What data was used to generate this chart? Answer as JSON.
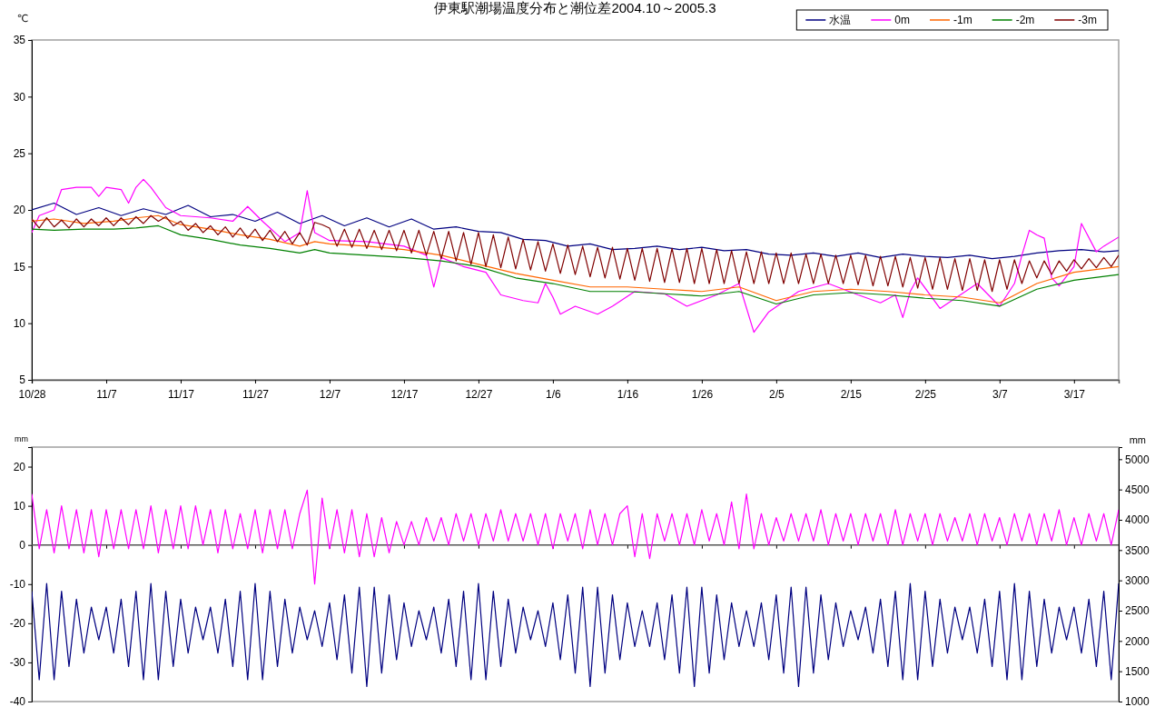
{
  "chart_data": [
    {
      "type": "line",
      "title": "伊東駅潮場温度分布と潮位差2004.10～2005.3",
      "ylabel": "℃",
      "legend": "top right",
      "x": [
        "2004-10-28",
        "2004-10-29",
        "2004-10-30",
        "2004-10-31",
        "2004-11-01",
        "2004-11-02",
        "2004-11-03",
        "2004-11-04",
        "2004-11-05",
        "2004-11-06",
        "2004-11-07",
        "2004-11-08",
        "2004-11-09",
        "2004-11-10",
        "2004-11-11",
        "2004-11-12",
        "2004-11-13",
        "2004-11-14",
        "2004-11-15",
        "2004-11-16",
        "2004-11-17",
        "2004-11-18",
        "2004-11-19",
        "2004-11-20",
        "2004-11-21",
        "2004-11-22",
        "2004-11-23",
        "2004-11-24",
        "2004-11-25",
        "2004-11-26",
        "2004-11-27",
        "2004-11-28",
        "2004-11-29",
        "2004-11-30",
        "2004-12-01",
        "2004-12-02",
        "2004-12-03",
        "2004-12-04",
        "2004-12-05",
        "2004-12-06",
        "2004-12-07",
        "2004-12-08",
        "2004-12-09",
        "2004-12-10",
        "2004-12-11",
        "2004-12-12",
        "2004-12-13",
        "2004-12-14",
        "2004-12-15",
        "2004-12-16",
        "2004-12-17",
        "2004-12-18",
        "2004-12-19",
        "2004-12-20",
        "2004-12-21",
        "2004-12-22",
        "2004-12-23",
        "2004-12-24",
        "2004-12-25",
        "2004-12-26",
        "2004-12-27",
        "2004-12-28",
        "2004-12-29",
        "2004-12-30",
        "2004-12-31",
        "2005-01-01",
        "2005-01-02",
        "2005-01-03",
        "2005-01-04",
        "2005-01-05",
        "2005-01-06",
        "2005-01-07",
        "2005-01-08",
        "2005-01-09",
        "2005-01-10",
        "2005-01-11",
        "2005-01-12",
        "2005-01-13",
        "2005-01-14",
        "2005-01-15",
        "2005-01-16",
        "2005-01-17",
        "2005-01-18",
        "2005-01-19",
        "2005-01-20",
        "2005-01-21",
        "2005-01-22",
        "2005-01-23",
        "2005-01-24",
        "2005-01-25",
        "2005-01-26",
        "2005-01-27",
        "2005-01-28",
        "2005-01-29",
        "2005-01-30",
        "2005-01-31",
        "2005-02-01",
        "2005-02-02",
        "2005-02-03",
        "2005-02-04",
        "2005-02-05",
        "2005-02-06",
        "2005-02-07",
        "2005-02-08",
        "2005-02-09",
        "2005-02-10",
        "2005-02-11",
        "2005-02-12",
        "2005-02-13",
        "2005-02-14",
        "2005-02-15",
        "2005-02-16",
        "2005-02-17",
        "2005-02-18",
        "2005-02-19",
        "2005-02-20",
        "2005-02-21",
        "2005-02-22",
        "2005-02-23",
        "2005-02-24",
        "2005-02-25",
        "2005-02-26",
        "2005-02-27",
        "2005-02-28",
        "2005-03-01",
        "2005-03-02",
        "2005-03-03",
        "2005-03-04",
        "2005-03-05",
        "2005-03-06",
        "2005-03-07",
        "2005-03-08",
        "2005-03-09",
        "2005-03-10",
        "2005-03-11",
        "2005-03-12",
        "2005-03-13",
        "2005-03-14",
        "2005-03-15",
        "2005-03-16",
        "2005-03-17",
        "2005-03-18",
        "2005-03-19",
        "2005-03-20",
        "2005-03-21",
        "2005-03-22",
        "2005-03-23"
      ],
      "xlim": [
        "2004-10-28",
        "2005-03-23"
      ],
      "xticks": [
        {
          "value": "2004-10-28",
          "label": "10/28"
        },
        {
          "value": "2004-11-07",
          "label": "11/7"
        },
        {
          "value": "2004-11-17",
          "label": "11/17"
        },
        {
          "value": "2004-11-27",
          "label": "11/27"
        },
        {
          "value": "2004-12-07",
          "label": "12/7"
        },
        {
          "value": "2004-12-17",
          "label": "12/17"
        },
        {
          "value": "2004-12-27",
          "label": "12/27"
        },
        {
          "value": "2005-01-06",
          "label": "1/6"
        },
        {
          "value": "2005-01-16",
          "label": "1/16"
        },
        {
          "value": "2005-01-26",
          "label": "1/26"
        },
        {
          "value": "2005-02-05",
          "label": "2/5"
        },
        {
          "value": "2005-02-15",
          "label": "2/15"
        },
        {
          "value": "2005-02-25",
          "label": "2/25"
        },
        {
          "value": "2005-03-07",
          "label": "3/7"
        },
        {
          "value": "2005-03-17",
          "label": "3/17"
        }
      ],
      "ylim": [
        5,
        35
      ],
      "yticks": [
        5,
        10,
        15,
        20,
        25,
        30,
        35
      ],
      "series": [
        {
          "name": "水温",
          "color": "#000080",
          "x": [
            "2004-10-28",
            "2004-10-31",
            "2004-11-03",
            "2004-11-06",
            "2004-11-09",
            "2004-11-12",
            "2004-11-15",
            "2004-11-18",
            "2004-11-21",
            "2004-11-24",
            "2004-11-27",
            "2004-11-30",
            "2004-12-03",
            "2004-12-06",
            "2004-12-09",
            "2004-12-12",
            "2004-12-15",
            "2004-12-18",
            "2004-12-21",
            "2004-12-24",
            "2004-12-27",
            "2004-12-30",
            "2005-01-02",
            "2005-01-05",
            "2005-01-08",
            "2005-01-11",
            "2005-01-14",
            "2005-01-17",
            "2005-01-20",
            "2005-01-23",
            "2005-01-26",
            "2005-01-29",
            "2005-02-01",
            "2005-02-04",
            "2005-02-07",
            "2005-02-10",
            "2005-02-13",
            "2005-02-16",
            "2005-02-19",
            "2005-02-22",
            "2005-02-25",
            "2005-02-28",
            "2005-03-03",
            "2005-03-06",
            "2005-03-09",
            "2005-03-12",
            "2005-03-15",
            "2005-03-18",
            "2005-03-21",
            "2005-03-23"
          ],
          "values": [
            20.0,
            20.6,
            19.6,
            20.2,
            19.5,
            20.1,
            19.6,
            20.4,
            19.4,
            19.6,
            19.0,
            19.8,
            18.8,
            19.5,
            18.6,
            19.3,
            18.5,
            19.2,
            18.3,
            18.5,
            18.1,
            18.0,
            17.4,
            17.3,
            16.8,
            17.0,
            16.5,
            16.6,
            16.8,
            16.5,
            16.7,
            16.4,
            16.5,
            16.1,
            16.0,
            16.2,
            15.9,
            16.2,
            15.8,
            16.1,
            15.9,
            15.8,
            16.0,
            15.7,
            15.9,
            16.2,
            16.4,
            16.5,
            16.3,
            16.4
          ]
        },
        {
          "name": "0m",
          "color": "#ff00ff",
          "x": [
            "2004-10-28",
            "2004-10-29",
            "2004-10-31",
            "2004-11-01",
            "2004-11-03",
            "2004-11-05",
            "2004-11-06",
            "2004-11-07",
            "2004-11-09",
            "2004-11-10",
            "2004-11-11",
            "2004-11-12",
            "2004-11-13",
            "2004-11-15",
            "2004-11-17",
            "2004-11-21",
            "2004-11-24",
            "2004-11-26",
            "2004-11-28",
            "2004-12-01",
            "2004-12-03",
            "2004-12-04",
            "2004-12-05",
            "2004-12-07",
            "2004-12-12",
            "2004-12-17",
            "2004-12-20",
            "2004-12-21",
            "2004-12-22",
            "2004-12-25",
            "2004-12-28",
            "2004-12-30",
            "2005-01-02",
            "2005-01-04",
            "2005-01-05",
            "2005-01-06",
            "2005-01-07",
            "2005-01-09",
            "2005-01-12",
            "2005-01-14",
            "2005-01-17",
            "2005-01-21",
            "2005-01-24",
            "2005-01-28",
            "2005-01-31",
            "2005-02-02",
            "2005-02-04",
            "2005-02-08",
            "2005-02-12",
            "2005-02-16",
            "2005-02-19",
            "2005-02-21",
            "2005-02-22",
            "2005-02-23",
            "2005-02-24",
            "2005-02-27",
            "2005-03-04",
            "2005-03-07",
            "2005-03-09",
            "2005-03-10",
            "2005-03-11",
            "2005-03-12",
            "2005-03-13",
            "2005-03-14",
            "2005-03-15",
            "2005-03-17",
            "2005-03-18",
            "2005-03-20",
            "2005-03-21",
            "2005-03-23"
          ],
          "values": [
            18.0,
            19.5,
            20.0,
            21.8,
            22.0,
            22.0,
            21.2,
            22.0,
            21.8,
            20.6,
            22.0,
            22.7,
            22.0,
            20.2,
            19.5,
            19.3,
            19.0,
            20.3,
            19.0,
            17.2,
            18.0,
            21.7,
            18.0,
            17.3,
            17.2,
            16.8,
            16.0,
            13.2,
            15.8,
            15.0,
            14.5,
            12.5,
            12.0,
            11.8,
            13.5,
            12.3,
            10.8,
            11.5,
            10.8,
            11.5,
            12.8,
            12.6,
            11.5,
            12.5,
            13.5,
            9.2,
            11.0,
            12.8,
            13.5,
            12.5,
            11.8,
            12.5,
            10.5,
            12.8,
            14.0,
            11.3,
            13.5,
            11.5,
            13.5,
            16.0,
            18.2,
            17.8,
            17.5,
            14.0,
            13.3,
            15.0,
            18.8,
            16.3,
            16.8,
            17.6
          ]
        },
        {
          "name": "-1m",
          "color": "#ff6600",
          "x": [
            "2004-10-28",
            "2004-10-31",
            "2004-11-04",
            "2004-11-08",
            "2004-11-11",
            "2004-11-14",
            "2004-11-17",
            "2004-11-21",
            "2004-11-25",
            "2004-11-29",
            "2004-12-03",
            "2004-12-05",
            "2004-12-07",
            "2004-12-12",
            "2004-12-17",
            "2004-12-22",
            "2004-12-27",
            "2005-01-01",
            "2005-01-06",
            "2005-01-11",
            "2005-01-16",
            "2005-01-21",
            "2005-01-26",
            "2005-01-31",
            "2005-02-05",
            "2005-02-10",
            "2005-02-15",
            "2005-02-20",
            "2005-02-25",
            "2005-03-02",
            "2005-03-07",
            "2005-03-12",
            "2005-03-17",
            "2005-03-23"
          ],
          "values": [
            19.0,
            19.2,
            18.8,
            19.0,
            19.3,
            19.5,
            18.7,
            18.3,
            17.8,
            17.4,
            16.8,
            17.2,
            17.0,
            16.8,
            16.5,
            16.0,
            15.2,
            14.4,
            13.8,
            13.2,
            13.2,
            13.0,
            12.8,
            13.2,
            12.0,
            12.8,
            13.0,
            12.8,
            12.5,
            12.3,
            11.8,
            13.5,
            14.5,
            15.0
          ]
        },
        {
          "name": "-2m",
          "color": "#008000",
          "x": [
            "2004-10-28",
            "2004-10-31",
            "2004-11-04",
            "2004-11-08",
            "2004-11-11",
            "2004-11-14",
            "2004-11-17",
            "2004-11-21",
            "2004-11-25",
            "2004-11-29",
            "2004-12-03",
            "2004-12-05",
            "2004-12-07",
            "2004-12-12",
            "2004-12-17",
            "2004-12-22",
            "2004-12-27",
            "2005-01-01",
            "2005-01-06",
            "2005-01-11",
            "2005-01-16",
            "2005-01-21",
            "2005-01-26",
            "2005-01-31",
            "2005-02-05",
            "2005-02-10",
            "2005-02-15",
            "2005-02-20",
            "2005-02-25",
            "2005-03-02",
            "2005-03-07",
            "2005-03-12",
            "2005-03-17",
            "2005-03-23"
          ],
          "values": [
            18.3,
            18.2,
            18.3,
            18.3,
            18.4,
            18.6,
            17.8,
            17.4,
            16.9,
            16.6,
            16.2,
            16.5,
            16.2,
            16.0,
            15.8,
            15.5,
            15.0,
            14.0,
            13.5,
            12.8,
            12.8,
            12.6,
            12.4,
            12.8,
            11.7,
            12.5,
            12.7,
            12.5,
            12.2,
            12.0,
            11.5,
            13.0,
            13.8,
            14.3
          ]
        },
        {
          "name": "-3m",
          "color": "#800000",
          "values": [
            19.2,
            18.4,
            19.3,
            18.5,
            19.1,
            18.4,
            19.2,
            18.5,
            19.2,
            18.6,
            19.3,
            18.6,
            19.3,
            18.7,
            19.4,
            18.8,
            19.5,
            19.0,
            19.4,
            18.6,
            19.0,
            18.2,
            18.8,
            18.0,
            18.6,
            17.8,
            18.5,
            17.6,
            18.4,
            17.5,
            18.3,
            17.3,
            18.2,
            17.2,
            18.1,
            17.0,
            18.0,
            16.9,
            18.9,
            18.7,
            18.4,
            16.8,
            18.3,
            16.7,
            18.3,
            16.6,
            18.2,
            16.5,
            18.2,
            16.4,
            18.2,
            16.2,
            18.2,
            16.0,
            18.1,
            15.7,
            18.1,
            15.5,
            18.0,
            15.2,
            18.0,
            15.0,
            17.8,
            14.9,
            17.6,
            14.8,
            17.4,
            14.7,
            17.2,
            14.6,
            17.0,
            14.4,
            16.9,
            14.3,
            16.8,
            14.1,
            16.7,
            14.0,
            16.7,
            13.9,
            16.6,
            13.8,
            16.6,
            13.7,
            16.6,
            13.6,
            16.6,
            13.6,
            16.6,
            13.5,
            16.6,
            13.5,
            16.5,
            13.5,
            16.4,
            13.5,
            16.3,
            13.5,
            16.3,
            13.5,
            16.2,
            13.5,
            16.2,
            13.5,
            16.1,
            13.5,
            16.1,
            13.5,
            16.0,
            13.5,
            16.0,
            13.4,
            16.0,
            13.3,
            15.9,
            13.3,
            15.9,
            13.2,
            15.8,
            13.1,
            15.8,
            13.0,
            15.8,
            13.0,
            15.7,
            12.9,
            15.7,
            12.9,
            15.6,
            12.8,
            15.6,
            13.0,
            15.6,
            13.5,
            15.5,
            14.0,
            15.5,
            14.3,
            15.5,
            14.6,
            15.6,
            14.8,
            15.7,
            14.9,
            15.8,
            15.0,
            16.0
          ]
        }
      ]
    },
    {
      "type": "line",
      "ylabel": "mm",
      "y2label": "mm",
      "categories": [
        null,
        null,
        null,
        null,
        null,
        null,
        null,
        null,
        null,
        null,
        null,
        null,
        null,
        null,
        null,
        null,
        null,
        null,
        null,
        null,
        null,
        null,
        null,
        null,
        null,
        null,
        null,
        null,
        null,
        null,
        null,
        null,
        null,
        null,
        null,
        null,
        null,
        null,
        null,
        null,
        null,
        null,
        null,
        null,
        null,
        null,
        null,
        null,
        null,
        null,
        null,
        null,
        null,
        null,
        null,
        null,
        null,
        null,
        null,
        null,
        null,
        null,
        null,
        null,
        null,
        null,
        null,
        null,
        null,
        null,
        null,
        null,
        null,
        null,
        null,
        null,
        null,
        null,
        null,
        null,
        null,
        null,
        null,
        null,
        null,
        null,
        null,
        null,
        null,
        null,
        null,
        null,
        null,
        null,
        null,
        null,
        null,
        null,
        null,
        null,
        null,
        null,
        null,
        null,
        null,
        null,
        null,
        null,
        null,
        null,
        null,
        null,
        null,
        null,
        null,
        null,
        null,
        null,
        null,
        null,
        null,
        null,
        null,
        null,
        null,
        null,
        null,
        null,
        null,
        null,
        null,
        null,
        null,
        null,
        null,
        null,
        null,
        null,
        null,
        null,
        null,
        null,
        null,
        null,
        null,
        null,
        null
      ],
      "ref_lines": [
        {
          "axis": "y",
          "value": 0,
          "color": "#555555"
        }
      ],
      "ylim": [
        -40,
        25
      ],
      "yticks": [
        -40,
        -30,
        -20,
        -10,
        0,
        10,
        20
      ],
      "y2lim": [
        1000,
        5200
      ],
      "y2ticks": [
        1000,
        1500,
        2000,
        2500,
        3000,
        3500,
        4000,
        4500,
        5000
      ],
      "series": [
        {
          "color": "#ff00ff",
          "values": [
            13,
            -1,
            9,
            -2,
            10,
            -1,
            9,
            -2,
            9,
            -3,
            9,
            -1,
            9,
            -1,
            9,
            -1,
            10,
            -2,
            9,
            -1,
            10,
            -1,
            10,
            0,
            9,
            -2,
            9,
            -1,
            8,
            -1,
            9,
            -2,
            9,
            -1,
            9,
            -1,
            8,
            14,
            -10,
            12,
            -1,
            9,
            -2,
            9,
            -3,
            8,
            -3,
            7,
            -2,
            6,
            0,
            6,
            0,
            7,
            1,
            7,
            0,
            8,
            1,
            8,
            0,
            8,
            1,
            9,
            1,
            8,
            1,
            8,
            0,
            8,
            -1,
            8,
            1,
            8,
            -1,
            9,
            0,
            8,
            0,
            8,
            10,
            -3,
            8,
            -3.5,
            8,
            1,
            8,
            0,
            8,
            0,
            9,
            1,
            8,
            0,
            11,
            -1,
            13,
            -1,
            8,
            0,
            7,
            1,
            8,
            1,
            8,
            1,
            9,
            0,
            8,
            1,
            8,
            0,
            8,
            1,
            8,
            0,
            9,
            0,
            8,
            1,
            8,
            0,
            8,
            1,
            7,
            1,
            8,
            0,
            8,
            1,
            7,
            0,
            8,
            1,
            8,
            0,
            8,
            1,
            9,
            0,
            7,
            0,
            8,
            1,
            8,
            0,
            9
          ]
        },
        {
          "color": "#000080",
          "axis": "y2",
          "values": [
            2820,
            1360,
            2950,
            1360,
            2820,
            1580,
            2690,
            1800,
            2560,
            2020,
            2560,
            1800,
            2690,
            1580,
            2820,
            1360,
            2950,
            1360,
            2820,
            1580,
            2690,
            1800,
            2560,
            2020,
            2560,
            1800,
            2690,
            1580,
            2820,
            1360,
            2950,
            1360,
            2820,
            1580,
            2690,
            1800,
            2560,
            2020,
            2500,
            1910,
            2630,
            1690,
            2760,
            1470,
            2890,
            1250,
            2890,
            1470,
            2760,
            1690,
            2630,
            1910,
            2500,
            2020,
            2560,
            1800,
            2690,
            1580,
            2820,
            1360,
            2950,
            1360,
            2820,
            1580,
            2690,
            1800,
            2560,
            2020,
            2500,
            1910,
            2630,
            1690,
            2760,
            1470,
            2890,
            1250,
            2890,
            1470,
            2760,
            1690,
            2630,
            1910,
            2500,
            1910,
            2630,
            1690,
            2760,
            1470,
            2890,
            1250,
            2890,
            1470,
            2760,
            1690,
            2630,
            1910,
            2500,
            1910,
            2630,
            1690,
            2760,
            1470,
            2890,
            1250,
            2890,
            1470,
            2760,
            1690,
            2630,
            1910,
            2500,
            2020,
            2560,
            1800,
            2690,
            1580,
            2820,
            1360,
            2950,
            1360,
            2820,
            1580,
            2690,
            1800,
            2560,
            2020,
            2560,
            1800,
            2690,
            1580,
            2820,
            1360,
            2950,
            1360,
            2820,
            1580,
            2690,
            1800,
            2560,
            2020,
            2560,
            1800,
            2690,
            1580,
            2820,
            1360,
            2950
          ]
        }
      ]
    }
  ]
}
